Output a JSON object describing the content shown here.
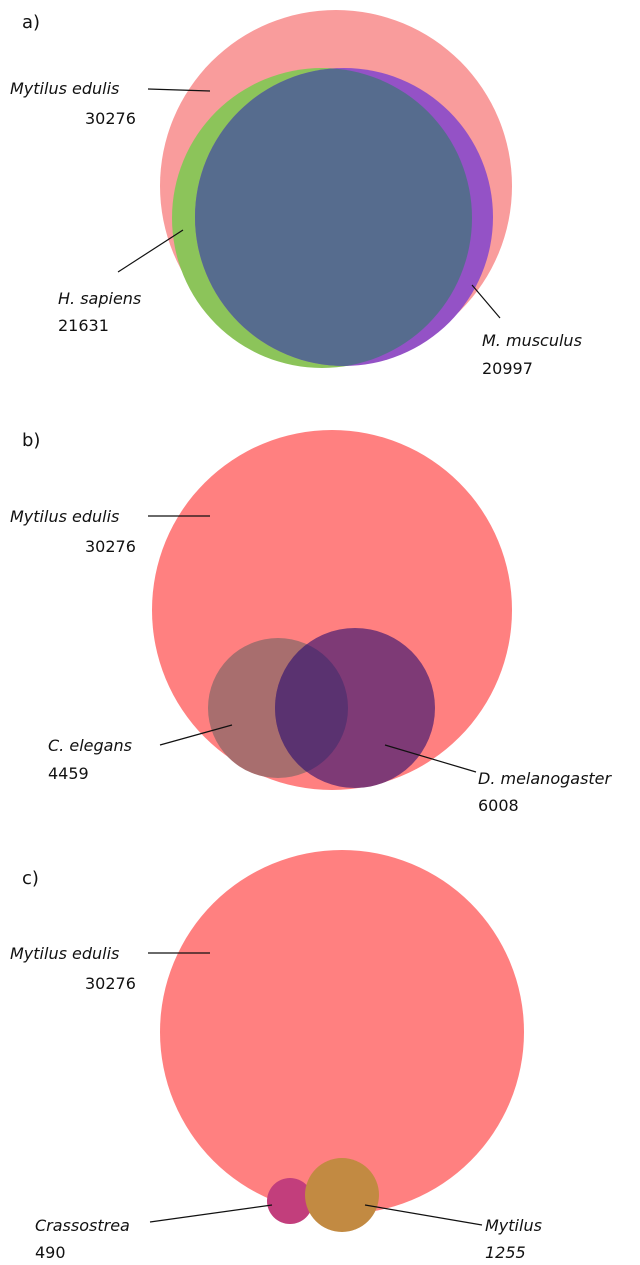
{
  "panels": [
    {
      "label": "a)",
      "sets": [
        {
          "name": "Mytilus edulis",
          "count": "30276",
          "color": "#f99c9c"
        },
        {
          "name": "H. sapiens",
          "count": "21631",
          "color": "#8cc45a"
        },
        {
          "name": "M. musculus",
          "count": "20997",
          "color": "#9452c6"
        }
      ]
    },
    {
      "label": "b)",
      "sets": [
        {
          "name": "Mytilus edulis",
          "count": "30276",
          "color": "#ff8080"
        },
        {
          "name": "C. elegans",
          "count": "4459",
          "color": "#a86e6e"
        },
        {
          "name": "D. melanogaster",
          "count": "6008",
          "color": "#7e3a76"
        }
      ]
    },
    {
      "label": "c)",
      "sets": [
        {
          "name": "Mytilus edulis",
          "count": "30276",
          "color": "#ff8080"
        },
        {
          "name": "Crassostrea",
          "count": "490",
          "color": "#c23e7c"
        },
        {
          "name": "Mytilus",
          "count": "1255",
          "color": "#c28a42"
        }
      ]
    }
  ]
}
